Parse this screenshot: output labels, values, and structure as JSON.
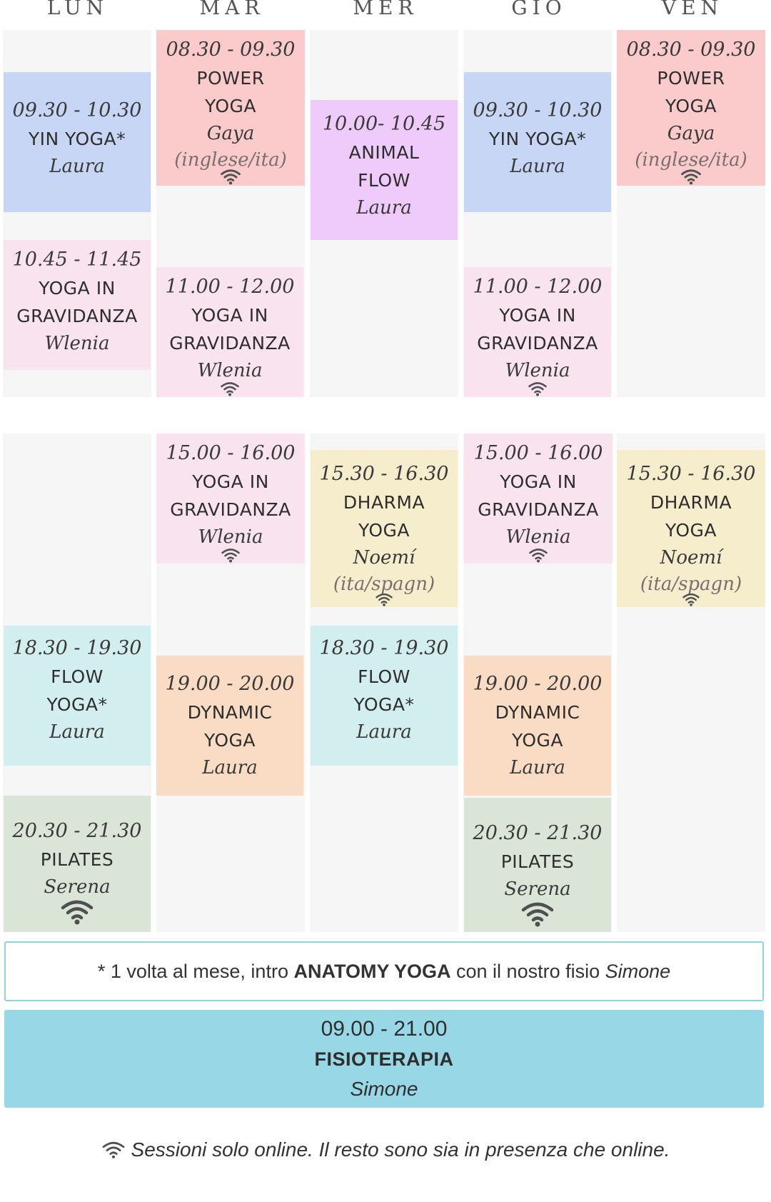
{
  "days": [
    "LUN",
    "MAR",
    "MER",
    "GIO",
    "VEN"
  ],
  "colors": {
    "pink": "#fbcaca",
    "lightpink": "#f8e3ee",
    "blue": "#c7d6f4",
    "purple": "#eecbfb",
    "yellow": "#f6edcd",
    "teal": "#d3eeee",
    "peach": "#f9dcc3",
    "sage": "#dbe5d7",
    "physio": "#98d8e6",
    "column_bg": "#f6f6f6",
    "wifi": "#505050"
  },
  "classes": [
    {
      "id": "lun-yin",
      "time": "09.30 - 10.30",
      "title": [
        "YIN YOGA*"
      ],
      "teacher": "Laura",
      "lang": "",
      "online_only": false,
      "color": "#c7d6f4"
    },
    {
      "id": "lun-grav",
      "time": "10.45 - 11.45",
      "title": [
        "YOGA IN",
        "GRAVIDANZA"
      ],
      "teacher": "Wlenia",
      "lang": "",
      "online_only": false,
      "color": "#f8e3ee"
    },
    {
      "id": "lun-flow",
      "time": "18.30 - 19.30",
      "title": [
        "FLOW",
        "YOGA*"
      ],
      "teacher": "Laura",
      "lang": "",
      "online_only": false,
      "color": "#d3eeee"
    },
    {
      "id": "lun-pilates",
      "time": "20.30 - 21.30",
      "title": [
        "PILATES"
      ],
      "teacher": "Serena",
      "lang": "",
      "online_only": true,
      "color": "#dbe5d7"
    },
    {
      "id": "mar-power",
      "time": "08.30 - 09.30",
      "title": [
        "POWER",
        "YOGA"
      ],
      "teacher": "Gaya",
      "lang": "(inglese/ita)",
      "online_only": true,
      "color": "#fbcaca"
    },
    {
      "id": "mar-grav1",
      "time": "11.00 - 12.00",
      "title": [
        "YOGA IN",
        "GRAVIDANZA"
      ],
      "teacher": "Wlenia",
      "lang": "",
      "online_only": true,
      "color": "#f8e3ee"
    },
    {
      "id": "mar-grav2",
      "time": "15.00 - 16.00",
      "title": [
        "YOGA IN",
        "GRAVIDANZA"
      ],
      "teacher": "Wlenia",
      "lang": "",
      "online_only": true,
      "color": "#f8e3ee"
    },
    {
      "id": "mar-dynamic",
      "time": "19.00 - 20.00",
      "title": [
        "DYNAMIC",
        "YOGA"
      ],
      "teacher": "Laura",
      "lang": "",
      "online_only": false,
      "color": "#f9dcc3"
    },
    {
      "id": "mer-animal",
      "time": "10.00- 10.45",
      "title": [
        "ANIMAL",
        "FLOW"
      ],
      "teacher": "Laura",
      "lang": "",
      "online_only": false,
      "color": "#eecbfb"
    },
    {
      "id": "mer-dharma",
      "time": "15.30 - 16.30",
      "title": [
        "DHARMA",
        "YOGA"
      ],
      "teacher": "Noemí",
      "lang": "(ita/spagn)",
      "online_only": true,
      "color": "#f6edcd"
    },
    {
      "id": "mer-flow",
      "time": "18.30 - 19.30",
      "title": [
        "FLOW",
        "YOGA*"
      ],
      "teacher": "Laura",
      "lang": "",
      "online_only": false,
      "color": "#d3eeee"
    },
    {
      "id": "gio-yin",
      "time": "09.30 - 10.30",
      "title": [
        "YIN YOGA*"
      ],
      "teacher": "Laura",
      "lang": "",
      "online_only": false,
      "color": "#c7d6f4"
    },
    {
      "id": "gio-grav1",
      "time": "11.00 - 12.00",
      "title": [
        "YOGA IN",
        "GRAVIDANZA"
      ],
      "teacher": "Wlenia",
      "lang": "",
      "online_only": true,
      "color": "#f8e3ee"
    },
    {
      "id": "gio-grav2",
      "time": "15.00 - 16.00",
      "title": [
        "YOGA IN",
        "GRAVIDANZA"
      ],
      "teacher": "Wlenia",
      "lang": "",
      "online_only": true,
      "color": "#f8e3ee"
    },
    {
      "id": "gio-dynamic",
      "time": "19.00 - 20.00",
      "title": [
        "DYNAMIC",
        "YOGA"
      ],
      "teacher": "Laura",
      "lang": "",
      "online_only": false,
      "color": "#f9dcc3"
    },
    {
      "id": "gio-pilates",
      "time": "20.30 - 21.30",
      "title": [
        "PILATES"
      ],
      "teacher": "Serena",
      "lang": "",
      "online_only": true,
      "color": "#dbe5d7"
    },
    {
      "id": "ven-power",
      "time": "08.30 - 09.30",
      "title": [
        "POWER",
        "YOGA"
      ],
      "teacher": "Gaya",
      "lang": "(inglese/ita)",
      "online_only": true,
      "color": "#fbcaca"
    },
    {
      "id": "ven-dharma",
      "time": "15.30 - 16.30",
      "title": [
        "DHARMA",
        "YOGA"
      ],
      "teacher": "Noemí",
      "lang": "(ita/spagn)",
      "online_only": true,
      "color": "#f6edcd"
    }
  ],
  "note": {
    "prefix": "* 1 volta al mese, intro ",
    "highlight": "ANATOMY YOGA",
    "middle": " con il nostro fisio ",
    "name": "Simone"
  },
  "physio": {
    "time": "09.00 - 21.00",
    "title": "FISIOTERAPIA",
    "teacher": "Simone"
  },
  "footer": {
    "icon": "wifi-icon",
    "text": "Sessioni solo online. Il resto sono sia in presenza che online."
  }
}
